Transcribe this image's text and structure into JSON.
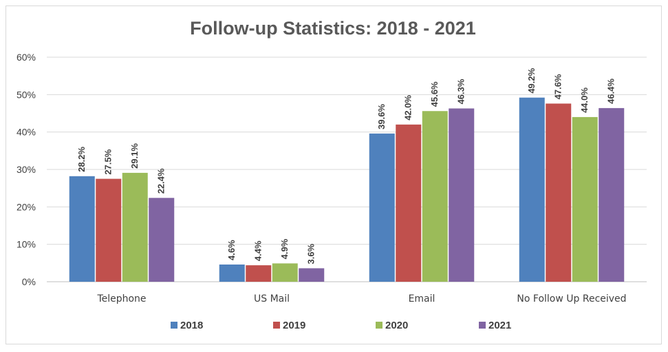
{
  "chart_data": {
    "type": "bar",
    "title": "Follow-up Statistics: 2018 - 2021",
    "categories": [
      "Telephone",
      "US Mail",
      "Email",
      "No Follow Up Received"
    ],
    "series": [
      {
        "name": "2018",
        "color": "#4f81bd",
        "values": [
          28.2,
          4.6,
          39.6,
          49.2
        ]
      },
      {
        "name": "2019",
        "color": "#c0504d",
        "values": [
          27.5,
          4.4,
          42.0,
          47.6
        ]
      },
      {
        "name": "2020",
        "color": "#9bbb59",
        "values": [
          29.1,
          4.9,
          45.6,
          44.0
        ]
      },
      {
        "name": "2021",
        "color": "#8064a2",
        "values": [
          22.4,
          3.6,
          46.3,
          46.4
        ]
      }
    ],
    "yticks": [
      "0%",
      "10%",
      "20%",
      "30%",
      "40%",
      "50%",
      "60%"
    ],
    "ylim": [
      0,
      60
    ],
    "value_suffix": "%",
    "grid": true,
    "legend_position": "bottom"
  }
}
